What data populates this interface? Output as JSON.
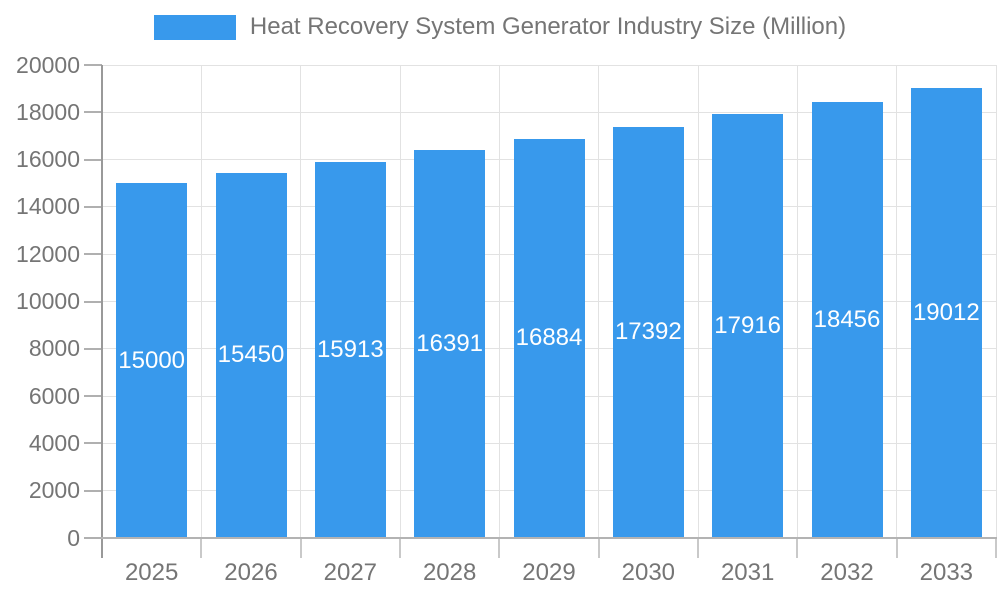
{
  "chart_data": {
    "type": "bar",
    "title": "Heat Recovery System Generator Industry Size (Million)",
    "categories": [
      "2025",
      "2026",
      "2027",
      "2028",
      "2029",
      "2030",
      "2031",
      "2032",
      "2033"
    ],
    "values": [
      15000,
      15450,
      15913,
      16391,
      16884,
      17392,
      17916,
      18456,
      19012
    ],
    "ylim": [
      0,
      20000
    ],
    "ytick_step": 2000,
    "ytick_labels": [
      "0",
      "2000",
      "4000",
      "6000",
      "8000",
      "10000",
      "12000",
      "14000",
      "16000",
      "18000",
      "20000"
    ],
    "grid": true,
    "legend_position": "top",
    "bar_color": "#3899EC",
    "bar_label_color": "#ffffff",
    "axis_text_color": "#757575",
    "gridline_color": "#e2e2e2"
  }
}
